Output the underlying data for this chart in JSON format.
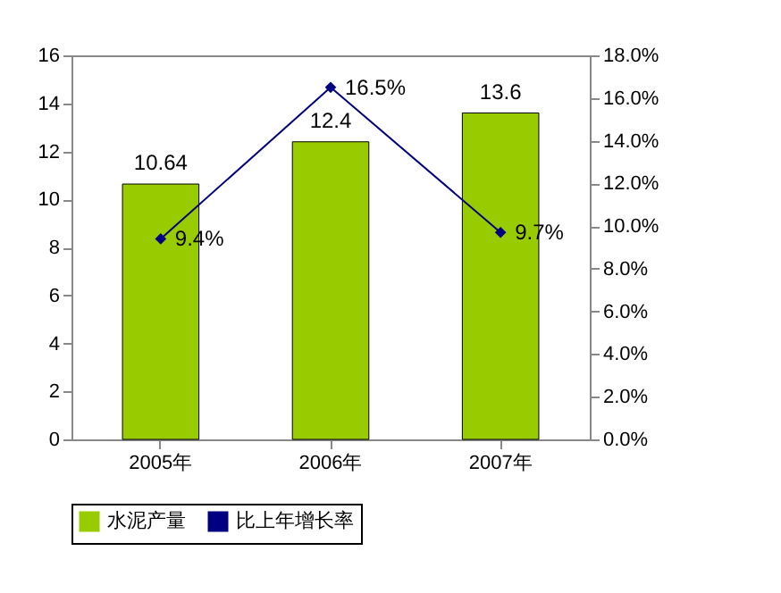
{
  "chart_data": {
    "type": "bar",
    "categories": [
      "2005年",
      "2006年",
      "2007年"
    ],
    "series": [
      {
        "name": "水泥产量",
        "color": "#99cc00",
        "values": [
          10.64,
          12.4,
          13.6
        ],
        "value_labels": [
          "10.64",
          "12.4",
          "13.6"
        ]
      },
      {
        "name": "比上年增长率",
        "type": "line",
        "axis": "y2",
        "color": "#000080",
        "values": [
          9.4,
          16.5,
          9.7
        ],
        "value_labels": [
          "9.4%",
          "16.5%",
          "9.7%"
        ]
      }
    ],
    "ylim": [
      0,
      16
    ],
    "yticks": [
      0,
      2,
      4,
      6,
      8,
      10,
      12,
      14,
      16
    ],
    "y2lim": [
      0,
      18
    ],
    "y2ticks": [
      {
        "value": 0,
        "label": "0.0%"
      },
      {
        "value": 2,
        "label": "2.0%"
      },
      {
        "value": 4,
        "label": "4.0%"
      },
      {
        "value": 6,
        "label": "6.0%"
      },
      {
        "value": 8,
        "label": "8.0%"
      },
      {
        "value": 10,
        "label": "10.0%"
      },
      {
        "value": 12,
        "label": "12.0%"
      },
      {
        "value": 14,
        "label": "14.0%"
      },
      {
        "value": 16,
        "label": "16.0%"
      },
      {
        "value": 18,
        "label": "18.0%"
      }
    ],
    "grid": false,
    "legend": "bottom",
    "marker": "diamond",
    "line_style": "solid"
  }
}
